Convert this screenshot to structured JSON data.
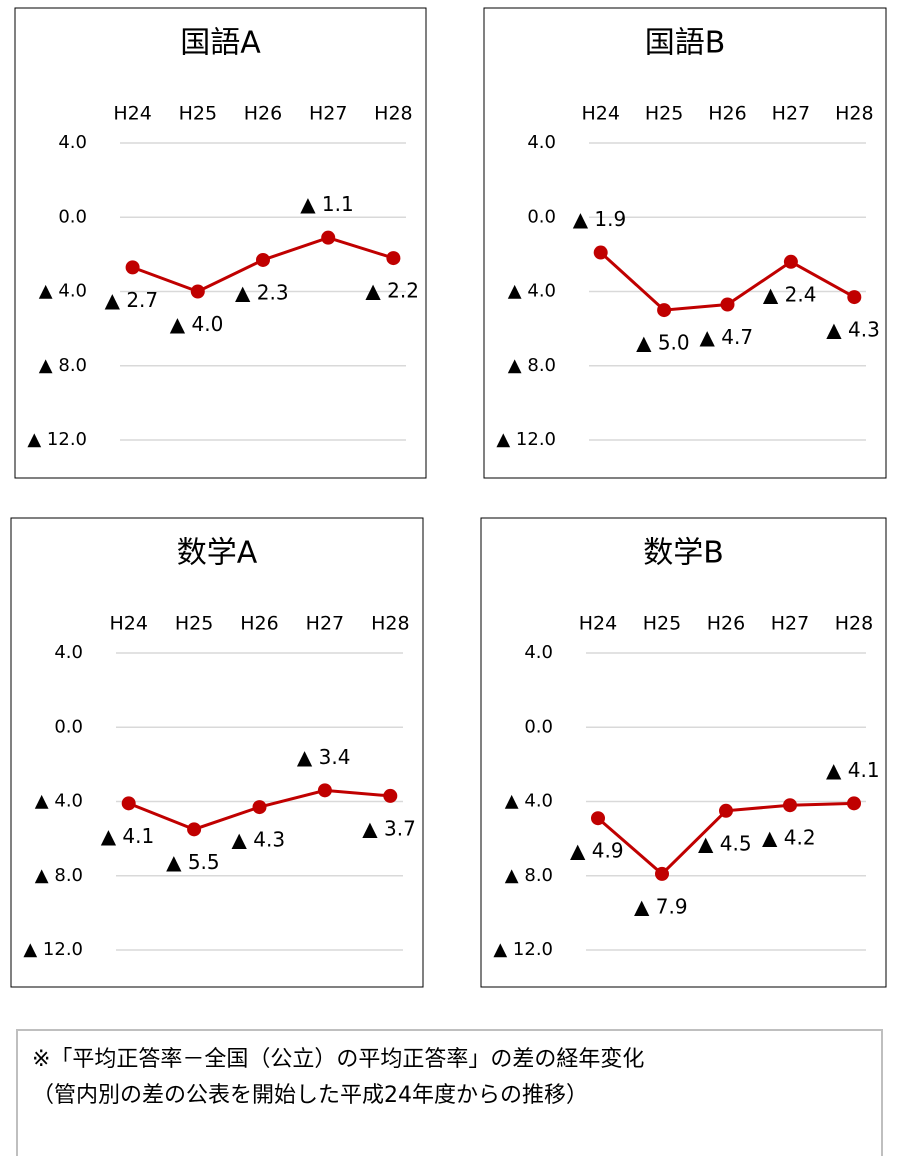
{
  "chart_data": [
    {
      "type": "line",
      "title": "国語A",
      "categories": [
        "H24",
        "H25",
        "H26",
        "H27",
        "H28"
      ],
      "values": [
        -2.7,
        -4.0,
        -2.3,
        -1.1,
        -2.2
      ],
      "value_labels": [
        "▲ 2.7",
        "▲ 4.0",
        "▲ 2.3",
        "▲ 1.1",
        "▲ 2.2"
      ],
      "color": "#c00000",
      "ylim": [
        -12,
        4
      ],
      "yticks": [
        {
          "value": 4,
          "label": "4.0"
        },
        {
          "value": 0,
          "label": "0.0"
        },
        {
          "value": -4,
          "label": "▲ 4.0"
        },
        {
          "value": -8,
          "label": "▲ 8.0"
        },
        {
          "value": -12,
          "label": "▲ 12.0"
        }
      ],
      "grid": true
    },
    {
      "type": "line",
      "title": "国語B",
      "categories": [
        "H24",
        "H25",
        "H26",
        "H27",
        "H28"
      ],
      "values": [
        -1.9,
        -5.0,
        -4.7,
        -2.4,
        -4.3
      ],
      "value_labels": [
        "▲ 1.9",
        "▲ 5.0",
        "▲ 4.7",
        "▲ 2.4",
        "▲ 4.3"
      ],
      "color": "#c00000",
      "ylim": [
        -12,
        4
      ],
      "yticks": [
        {
          "value": 4,
          "label": "4.0"
        },
        {
          "value": 0,
          "label": "0.0"
        },
        {
          "value": -4,
          "label": "▲ 4.0"
        },
        {
          "value": -8,
          "label": "▲ 8.0"
        },
        {
          "value": -12,
          "label": "▲ 12.0"
        }
      ],
      "grid": true
    },
    {
      "type": "line",
      "title": "数学A",
      "categories": [
        "H24",
        "H25",
        "H26",
        "H27",
        "H28"
      ],
      "values": [
        -4.1,
        -5.5,
        -4.3,
        -3.4,
        -3.7
      ],
      "value_labels": [
        "▲ 4.1",
        "▲ 5.5",
        "▲ 4.3",
        "▲ 3.4",
        "▲ 3.7"
      ],
      "color": "#c00000",
      "ylim": [
        -12,
        4
      ],
      "yticks": [
        {
          "value": 4,
          "label": "4.0"
        },
        {
          "value": 0,
          "label": "0.0"
        },
        {
          "value": -4,
          "label": "▲ 4.0"
        },
        {
          "value": -8,
          "label": "▲ 8.0"
        },
        {
          "value": -12,
          "label": "▲ 12.0"
        }
      ],
      "grid": true
    },
    {
      "type": "line",
      "title": "数学B",
      "categories": [
        "H24",
        "H25",
        "H26",
        "H27",
        "H28"
      ],
      "values": [
        -4.9,
        -7.9,
        -4.5,
        -4.2,
        -4.1
      ],
      "value_labels": [
        "▲ 4.9",
        "▲ 7.9",
        "▲ 4.5",
        "▲ 4.2",
        "▲ 4.1"
      ],
      "color": "#c00000",
      "ylim": [
        -12,
        4
      ],
      "yticks": [
        {
          "value": 4,
          "label": "4.0"
        },
        {
          "value": 0,
          "label": "0.0"
        },
        {
          "value": -4,
          "label": "▲ 4.0"
        },
        {
          "value": -8,
          "label": "▲ 8.0"
        },
        {
          "value": -12,
          "label": "▲ 12.0"
        }
      ],
      "grid": true
    }
  ],
  "note": {
    "lines": [
      "※「平均正答率－全国（公立）の平均正答率」の差の経年変化",
      "（管内別の差の公表を開始した平成24年度からの推移）"
    ]
  }
}
